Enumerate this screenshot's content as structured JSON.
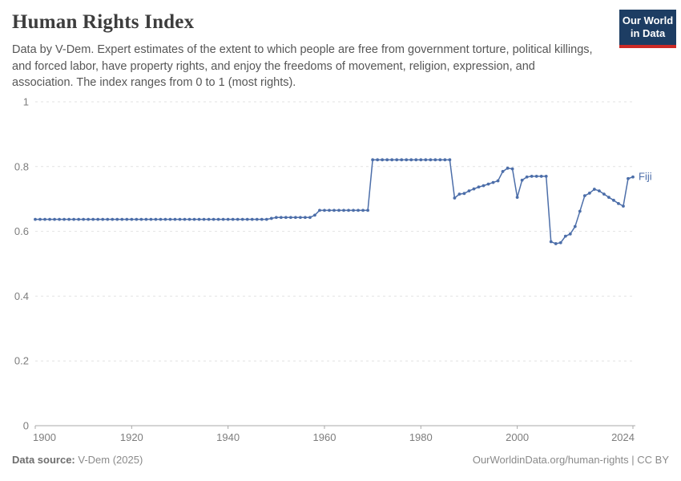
{
  "header": {
    "title": "Human Rights Index",
    "subtitle": "Data by V-Dem. Expert estimates of the extent to which people are free from government torture, political killings, and forced labor, have property rights, and enjoy the freedoms of movement, religion, expression, and association. The index ranges from 0 to 1 (most rights).",
    "logo": {
      "line1": "Our World",
      "line2": "in Data"
    }
  },
  "footer": {
    "source_label": "Data source:",
    "source_value": " V-Dem (2025)",
    "credit": "OurWorldinData.org/human-rights | CC BY"
  },
  "colors": {
    "line": "#4c6ea9",
    "grid": "#e2e2e2",
    "axis": "#a8a8a8",
    "tick_text": "#7d7d7d",
    "logo_bg": "#1d3d63",
    "logo_red": "#cc2a26"
  },
  "chart_data": {
    "type": "line",
    "title": "Human Rights Index",
    "xlabel": "",
    "ylabel": "",
    "xlim": [
      1900,
      2024
    ],
    "ylim": [
      0,
      1
    ],
    "xticks": [
      1900,
      1920,
      1940,
      1960,
      1980,
      2000,
      2024
    ],
    "yticks": [
      0,
      0.2,
      0.4,
      0.6,
      0.8,
      1
    ],
    "grid": "horizontal-dashed",
    "legend_position": "end-of-line",
    "x": [
      1900,
      1901,
      1902,
      1903,
      1904,
      1905,
      1906,
      1907,
      1908,
      1909,
      1910,
      1911,
      1912,
      1913,
      1914,
      1915,
      1916,
      1917,
      1918,
      1919,
      1920,
      1921,
      1922,
      1923,
      1924,
      1925,
      1926,
      1927,
      1928,
      1929,
      1930,
      1931,
      1932,
      1933,
      1934,
      1935,
      1936,
      1937,
      1938,
      1939,
      1940,
      1941,
      1942,
      1943,
      1944,
      1945,
      1946,
      1947,
      1948,
      1949,
      1950,
      1951,
      1952,
      1953,
      1954,
      1955,
      1956,
      1957,
      1958,
      1959,
      1960,
      1961,
      1962,
      1963,
      1964,
      1965,
      1966,
      1967,
      1968,
      1969,
      1970,
      1971,
      1972,
      1973,
      1974,
      1975,
      1976,
      1977,
      1978,
      1979,
      1980,
      1981,
      1982,
      1983,
      1984,
      1985,
      1986,
      1987,
      1988,
      1989,
      1990,
      1991,
      1992,
      1993,
      1994,
      1995,
      1996,
      1997,
      1998,
      1999,
      2000,
      2001,
      2002,
      2003,
      2004,
      2005,
      2006,
      2007,
      2008,
      2009,
      2010,
      2011,
      2012,
      2013,
      2014,
      2015,
      2016,
      2017,
      2018,
      2019,
      2020,
      2021,
      2022,
      2023,
      2024
    ],
    "series": [
      {
        "name": "Fiji",
        "values": [
          0.637,
          0.637,
          0.637,
          0.637,
          0.637,
          0.637,
          0.637,
          0.637,
          0.637,
          0.637,
          0.637,
          0.637,
          0.637,
          0.637,
          0.637,
          0.637,
          0.637,
          0.637,
          0.637,
          0.637,
          0.637,
          0.637,
          0.637,
          0.637,
          0.637,
          0.637,
          0.637,
          0.637,
          0.637,
          0.637,
          0.637,
          0.637,
          0.637,
          0.637,
          0.637,
          0.637,
          0.637,
          0.637,
          0.637,
          0.637,
          0.637,
          0.637,
          0.637,
          0.637,
          0.637,
          0.637,
          0.637,
          0.637,
          0.637,
          0.64,
          0.643,
          0.643,
          0.643,
          0.643,
          0.643,
          0.643,
          0.643,
          0.643,
          0.65,
          0.665,
          0.665,
          0.665,
          0.665,
          0.665,
          0.665,
          0.665,
          0.665,
          0.665,
          0.665,
          0.665,
          0.821,
          0.821,
          0.821,
          0.821,
          0.821,
          0.821,
          0.821,
          0.821,
          0.821,
          0.821,
          0.821,
          0.821,
          0.821,
          0.821,
          0.821,
          0.821,
          0.821,
          0.703,
          0.715,
          0.717,
          0.725,
          0.731,
          0.737,
          0.741,
          0.746,
          0.751,
          0.756,
          0.785,
          0.795,
          0.793,
          0.705,
          0.758,
          0.768,
          0.77,
          0.77,
          0.77,
          0.77,
          0.568,
          0.562,
          0.565,
          0.585,
          0.592,
          0.615,
          0.662,
          0.71,
          0.718,
          0.73,
          0.725,
          0.715,
          0.705,
          0.696,
          0.686,
          0.678,
          0.763,
          0.768
        ]
      }
    ]
  }
}
